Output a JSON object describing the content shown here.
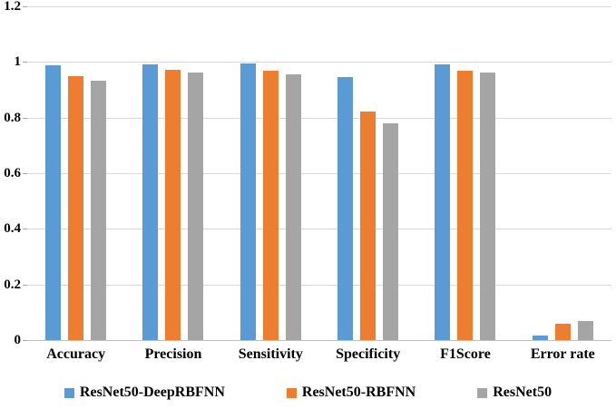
{
  "chart_data": {
    "type": "bar",
    "title": "",
    "xlabel": "",
    "ylabel": "",
    "grid": true,
    "legend_position": "bottom",
    "ylim": [
      0,
      1.2
    ],
    "yticks": [
      {
        "value": 0,
        "label": "0"
      },
      {
        "value": 0.2,
        "label": "0.2"
      },
      {
        "value": 0.4,
        "label": "0.4"
      },
      {
        "value": 0.6,
        "label": "0.6"
      },
      {
        "value": 0.8,
        "label": "0.8"
      },
      {
        "value": 1,
        "label": "1"
      },
      {
        "value": 1.2,
        "label": "1.2"
      }
    ],
    "categories": [
      "Accuracy",
      "Precision",
      "Sensitivity",
      "Specificity",
      "F1Score",
      "Error rate"
    ],
    "series": [
      {
        "name": "ResNet50-DeepRBFNN",
        "color": "#5B9BD5",
        "values": [
          0.987,
          0.992,
          0.994,
          0.945,
          0.992,
          0.016
        ]
      },
      {
        "name": "ResNet50-RBFNN",
        "color": "#ED7D31",
        "values": [
          0.948,
          0.971,
          0.967,
          0.822,
          0.969,
          0.058
        ]
      },
      {
        "name": "ResNet50",
        "color": "#A5A5A5",
        "values": [
          0.933,
          0.963,
          0.956,
          0.78,
          0.961,
          0.07
        ]
      }
    ]
  },
  "colors": {
    "gridline": "#D9D9D9",
    "axis_line": "#BFBFBF",
    "text": "#000000",
    "background": "#FFFFFF"
  }
}
